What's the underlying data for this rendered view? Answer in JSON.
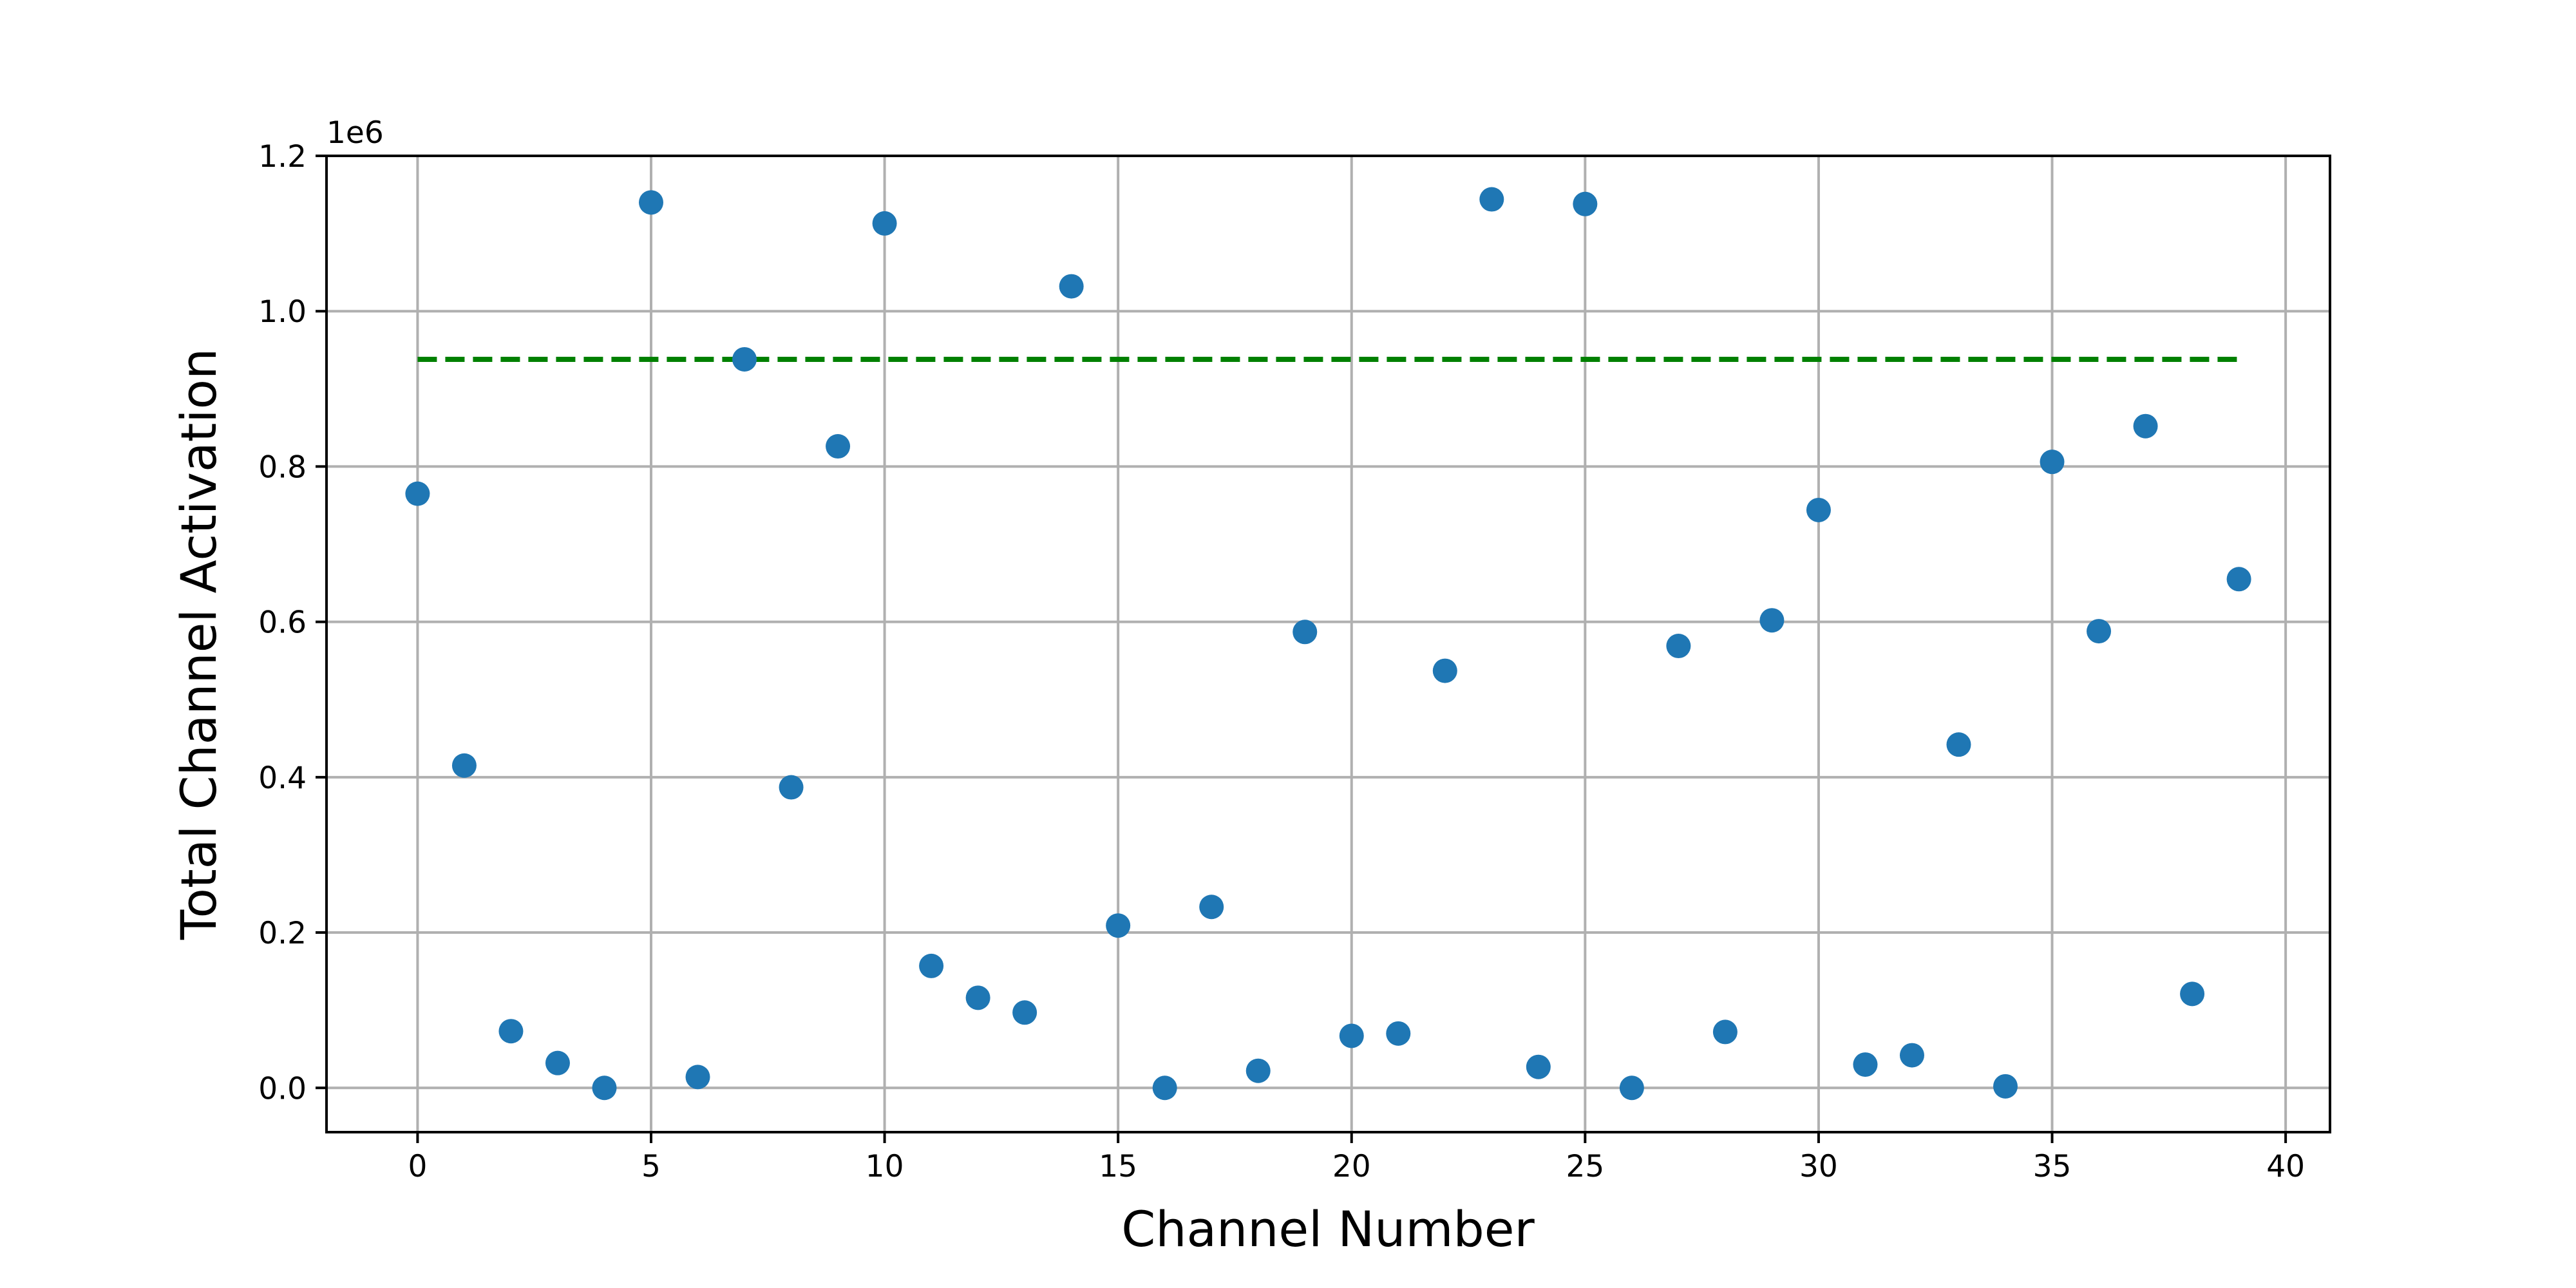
{
  "chart_data": {
    "type": "scatter",
    "title": "",
    "xlabel": "Channel Number",
    "ylabel": "Total Channel Activation",
    "y_offset_label": "1e6",
    "xlim": [
      -1.95,
      40.95
    ],
    "ylim": [
      -57000,
      1200000
    ],
    "xticks": [
      0,
      5,
      10,
      15,
      20,
      25,
      30,
      35,
      40
    ],
    "xtick_labels": [
      "0",
      "5",
      "10",
      "15",
      "20",
      "25",
      "30",
      "35",
      "40"
    ],
    "yticks": [
      0,
      200000,
      400000,
      600000,
      800000,
      1000000,
      1200000
    ],
    "ytick_labels": [
      "0.0",
      "0.2",
      "0.4",
      "0.6",
      "0.8",
      "1.0",
      "1.2"
    ],
    "grid": true,
    "series": [
      {
        "color": "#1f77b4",
        "marker": "circle",
        "x": [
          0,
          1,
          2,
          3,
          4,
          5,
          6,
          7,
          8,
          9,
          10,
          11,
          12,
          13,
          14,
          15,
          16,
          17,
          18,
          19,
          20,
          21,
          22,
          23,
          24,
          25,
          26,
          27,
          28,
          29,
          30,
          31,
          32,
          33,
          34,
          35,
          36,
          37,
          38,
          39
        ],
        "y": [
          765000,
          415000,
          73000,
          32000,
          0,
          1140000,
          14000,
          938000,
          387000,
          826000,
          1113000,
          157000,
          116000,
          97000,
          1032000,
          209000,
          0,
          233000,
          22000,
          587000,
          67000,
          70000,
          537000,
          1144000,
          27000,
          1138000,
          0,
          569000,
          72000,
          602000,
          744000,
          30000,
          42000,
          442000,
          2000,
          806000,
          588000,
          852000,
          121000,
          655000
        ]
      }
    ],
    "reference_line": {
      "style": "dashed",
      "color": "#008000",
      "x_start": 0,
      "x_end": 39,
      "y": 938000
    }
  }
}
